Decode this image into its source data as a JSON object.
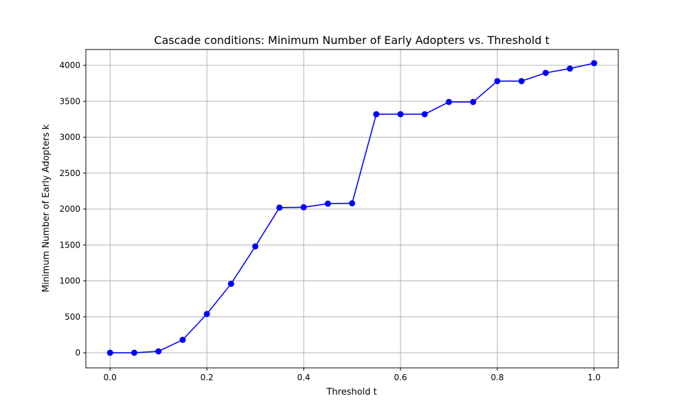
{
  "chart_data": {
    "type": "line",
    "title": "Cascade conditions: Minimum Number of Early Adopters vs. Threshold t",
    "xlabel": "Threshold t",
    "ylabel": "Minimum Number of Early Adopters k",
    "xlim": [
      -0.05,
      1.05
    ],
    "ylim": [
      -210,
      4220
    ],
    "xticks": [
      0.0,
      0.2,
      0.4,
      0.6,
      0.8,
      1.0
    ],
    "xtick_labels": [
      "0.0",
      "0.2",
      "0.4",
      "0.6",
      "0.8",
      "1.0"
    ],
    "yticks": [
      0,
      500,
      1000,
      1500,
      2000,
      2500,
      3000,
      3500,
      4000
    ],
    "ytick_labels": [
      "0",
      "500",
      "1000",
      "1500",
      "2000",
      "2500",
      "3000",
      "3500",
      "4000"
    ],
    "grid": true,
    "series": [
      {
        "color": "#0000ff",
        "marker": "circle",
        "x": [
          0.0,
          0.05,
          0.1,
          0.15,
          0.2,
          0.25,
          0.3,
          0.35,
          0.4,
          0.45,
          0.5,
          0.55,
          0.6,
          0.65,
          0.7,
          0.75,
          0.8,
          0.85,
          0.9,
          0.95,
          1.0
        ],
        "y": [
          0,
          0,
          20,
          180,
          540,
          960,
          1480,
          2020,
          2025,
          2075,
          2080,
          3320,
          3320,
          3320,
          3490,
          3490,
          3780,
          3780,
          3895,
          3955,
          4030
        ]
      }
    ]
  }
}
